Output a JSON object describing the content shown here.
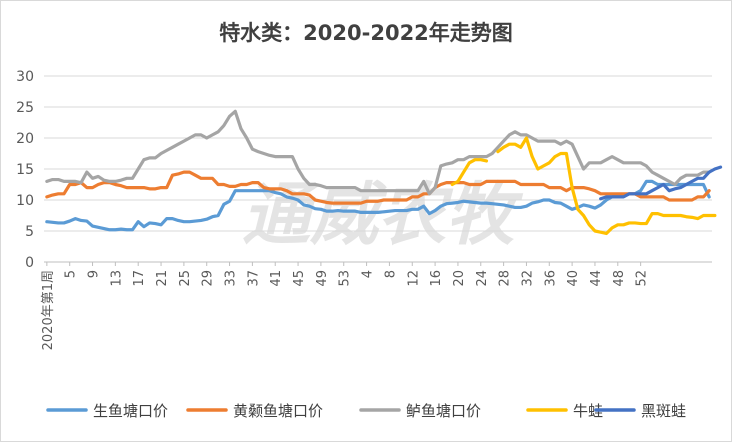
{
  "chart_data": {
    "type": "line",
    "title": "特水类：2020-2022年走势图",
    "watermark": "通威农牧",
    "xlabel": "",
    "ylabel": "",
    "ylim": [
      0,
      30
    ],
    "yticks": [
      0,
      5,
      10,
      15,
      20,
      25,
      30
    ],
    "grid": true,
    "legend_position": "bottom",
    "x_tick_labels": [
      "2020年第1周",
      "5",
      "9",
      "13",
      "17",
      "21",
      "25",
      "29",
      "33",
      "37",
      "41",
      "45",
      "49",
      "53",
      "4",
      "8",
      "12",
      "16",
      "20",
      "24",
      "28",
      "32",
      "36",
      "40",
      "44",
      "48",
      "52"
    ],
    "series": [
      {
        "name": "生鱼塘口价",
        "color": "#5B9BD5",
        "values": [
          6.5,
          6.4,
          6.3,
          6.3,
          6.6,
          7.0,
          6.7,
          6.6,
          5.8,
          5.6,
          5.4,
          5.2,
          5.2,
          5.3,
          5.2,
          5.2,
          6.5,
          5.7,
          6.3,
          6.2,
          6.0,
          7.0,
          7.0,
          6.7,
          6.5,
          6.5,
          6.6,
          6.7,
          6.9,
          7.3,
          7.5,
          9.3,
          9.8,
          11.5,
          11.5,
          11.5,
          11.5,
          11.5,
          11.5,
          11.5,
          11.2,
          11.0,
          10.5,
          10.3,
          10.0,
          9.2,
          9.0,
          8.6,
          8.5,
          8.2,
          8.2,
          8.3,
          8.2,
          8.2,
          8.2,
          8.0,
          8.0,
          8.0,
          8.0,
          8.1,
          8.2,
          8.3,
          8.3,
          8.3,
          8.5,
          8.5,
          9.0,
          7.8,
          8.3,
          9.0,
          9.4,
          9.5,
          9.6,
          9.8,
          9.7,
          9.6,
          9.5,
          9.5,
          9.4,
          9.3,
          9.2,
          9.0,
          8.8,
          8.8,
          9.0,
          9.5,
          9.7,
          10.0,
          10.0,
          9.6,
          9.5,
          9.0,
          8.5,
          8.8,
          9.2,
          9.0,
          8.7,
          9.2,
          10.0,
          10.5,
          10.8,
          10.8,
          11.0,
          11.0,
          11.5,
          13.0,
          13.0,
          12.5,
          12.5,
          12.5,
          12.5,
          12.5,
          12.5,
          12.5,
          12.5,
          12.5,
          10.5
        ]
      },
      {
        "name": "黄颡鱼塘口价",
        "color": "#ED7D31",
        "values": [
          10.5,
          10.8,
          11.0,
          11.0,
          12.5,
          12.5,
          12.8,
          12.0,
          12.0,
          12.5,
          12.8,
          12.8,
          12.5,
          12.3,
          12.0,
          12.0,
          12.0,
          12.0,
          11.8,
          11.8,
          12.0,
          12.0,
          14.0,
          14.2,
          14.5,
          14.5,
          14.0,
          13.5,
          13.5,
          13.5,
          12.5,
          12.5,
          12.2,
          12.2,
          12.5,
          12.5,
          12.8,
          12.8,
          12.0,
          11.8,
          11.8,
          11.8,
          11.5,
          11.0,
          11.0,
          11.0,
          10.8,
          10.0,
          9.8,
          9.6,
          9.5,
          9.5,
          9.5,
          9.5,
          9.5,
          9.5,
          9.8,
          9.8,
          9.8,
          10.0,
          10.0,
          10.0,
          10.0,
          10.0,
          10.5,
          10.5,
          11.0,
          11.0,
          12.0,
          12.5,
          12.8,
          12.8,
          12.8,
          12.8,
          12.5,
          12.5,
          12.5,
          13.0,
          13.0,
          13.0,
          13.0,
          13.0,
          13.0,
          12.5,
          12.5,
          12.5,
          12.5,
          12.5,
          12.0,
          12.0,
          12.0,
          11.5,
          12.0,
          12.0,
          12.0,
          11.8,
          11.5,
          11.0,
          11.0,
          11.0,
          11.0,
          11.0,
          11.0,
          11.0,
          10.5,
          10.5,
          10.5,
          10.5,
          10.5,
          10.0,
          10.0,
          10.0,
          10.0,
          10.0,
          10.5,
          10.5,
          11.5
        ]
      },
      {
        "name": "鲈鱼塘口价",
        "color": "#A5A5A5",
        "values": [
          13.0,
          13.3,
          13.3,
          13.0,
          13.0,
          13.0,
          12.8,
          14.5,
          13.5,
          13.8,
          13.2,
          13.0,
          13.0,
          13.2,
          13.5,
          13.5,
          15.0,
          16.5,
          16.8,
          16.8,
          17.5,
          18.0,
          18.5,
          19.0,
          19.5,
          20.0,
          20.5,
          20.5,
          20.0,
          20.5,
          21.0,
          22.0,
          23.5,
          24.3,
          21.5,
          20.0,
          18.2,
          17.8,
          17.5,
          17.2,
          17.0,
          17.0,
          17.0,
          17.0,
          15.0,
          13.5,
          12.5,
          12.5,
          12.3,
          12.0,
          12.0,
          12.0,
          12.0,
          12.0,
          12.0,
          11.5,
          11.5,
          11.5,
          11.5,
          11.5,
          11.5,
          11.5,
          11.5,
          11.5,
          11.5,
          11.5,
          13.0,
          11.0,
          12.0,
          15.5,
          15.8,
          16.0,
          16.5,
          16.5,
          17.0,
          17.0,
          17.0,
          17.0,
          17.5,
          18.5,
          19.5,
          20.5,
          21.0,
          20.5,
          20.5,
          20.0,
          19.5,
          19.5,
          19.5,
          19.5,
          19.0,
          19.5,
          19.0,
          17.0,
          15.0,
          16.0,
          16.0,
          16.0,
          16.5,
          17.0,
          16.5,
          16.0,
          16.0,
          16.0,
          16.0,
          15.5,
          14.5,
          14.0,
          13.5,
          13.0,
          12.5,
          13.5,
          14.0,
          14.0,
          14.0,
          14.5,
          14.5
        ]
      },
      {
        "name": "牛蛙",
        "color": "#FFC000",
        "values": [
          null,
          null,
          null,
          null,
          null,
          null,
          null,
          null,
          null,
          null,
          null,
          null,
          null,
          null,
          null,
          null,
          null,
          null,
          null,
          null,
          null,
          null,
          null,
          null,
          null,
          null,
          null,
          null,
          null,
          null,
          null,
          null,
          null,
          null,
          null,
          null,
          null,
          null,
          null,
          null,
          null,
          null,
          null,
          null,
          null,
          null,
          null,
          null,
          null,
          null,
          null,
          null,
          null,
          null,
          null,
          null,
          null,
          null,
          null,
          null,
          null,
          null,
          null,
          null,
          null,
          null,
          null,
          null,
          null,
          null,
          null,
          12.5,
          13.0,
          14.5,
          16.0,
          16.5,
          16.5,
          16.3,
          null,
          17.8,
          18.5,
          19.0,
          19.0,
          18.5,
          20.0,
          17.0,
          15.0,
          15.5,
          16.0,
          17.0,
          17.5,
          17.5,
          12.0,
          8.5,
          7.5,
          6.0,
          5.0,
          4.8,
          4.6,
          5.5,
          6.0,
          6.0,
          6.3,
          6.3,
          6.2,
          6.2,
          7.8,
          7.8,
          7.5,
          7.5,
          7.5,
          7.5,
          7.3,
          7.2,
          7.0,
          7.5,
          7.5,
          7.5
        ]
      },
      {
        "name": "黑斑蛙",
        "color": "#4472C4",
        "values": [
          null,
          null,
          null,
          null,
          null,
          null,
          null,
          null,
          null,
          null,
          null,
          null,
          null,
          null,
          null,
          null,
          null,
          null,
          null,
          null,
          null,
          null,
          null,
          null,
          null,
          null,
          null,
          null,
          null,
          null,
          null,
          null,
          null,
          null,
          null,
          null,
          null,
          null,
          null,
          null,
          null,
          null,
          null,
          null,
          null,
          null,
          null,
          null,
          null,
          null,
          null,
          null,
          null,
          null,
          null,
          null,
          null,
          null,
          null,
          null,
          null,
          null,
          null,
          null,
          null,
          null,
          null,
          null,
          null,
          null,
          null,
          null,
          null,
          null,
          null,
          null,
          null,
          null,
          null,
          null,
          null,
          null,
          null,
          null,
          null,
          null,
          null,
          null,
          null,
          null,
          null,
          null,
          null,
          null,
          null,
          null,
          null,
          10.2,
          10.5,
          10.5,
          10.5,
          10.5,
          11.0,
          11.0,
          11.0,
          11.0,
          11.5,
          12.0,
          12.5,
          11.5,
          11.8,
          12.0,
          12.5,
          13.0,
          13.5,
          13.5,
          14.5,
          15.0,
          15.3
        ]
      }
    ]
  }
}
